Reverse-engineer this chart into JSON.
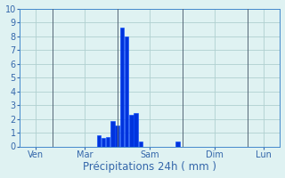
{
  "title": "Précipitations 24h ( mm )",
  "background_color": "#dff2f2",
  "grid_color": "#b0d0d0",
  "bar_color": "#0033dd",
  "bar_edge_color": "#0044ff",
  "axis_color": "#4488cc",
  "tick_color": "#3366aa",
  "title_color": "#3366aa",
  "title_fontsize": 8.5,
  "tick_fontsize": 7,
  "ylim": [
    0,
    10
  ],
  "yticks": [
    0,
    1,
    2,
    3,
    4,
    5,
    6,
    7,
    8,
    9,
    10
  ],
  "xlim": [
    0,
    56
  ],
  "bar_positions": [
    17,
    18,
    19,
    20,
    21,
    22,
    23,
    24,
    25,
    26,
    34
  ],
  "bar_values": [
    0.8,
    0.6,
    0.65,
    1.85,
    1.5,
    8.6,
    8.0,
    2.3,
    2.4,
    0.35,
    0.35
  ],
  "bar_width": 0.85,
  "vline_positions": [
    7,
    21,
    35,
    49
  ],
  "xtick_positions": [
    3.5,
    14,
    28,
    42,
    52.5
  ],
  "xtick_labels": [
    "Ven",
    "Mar",
    "Sam",
    "Dim",
    "Lun"
  ]
}
